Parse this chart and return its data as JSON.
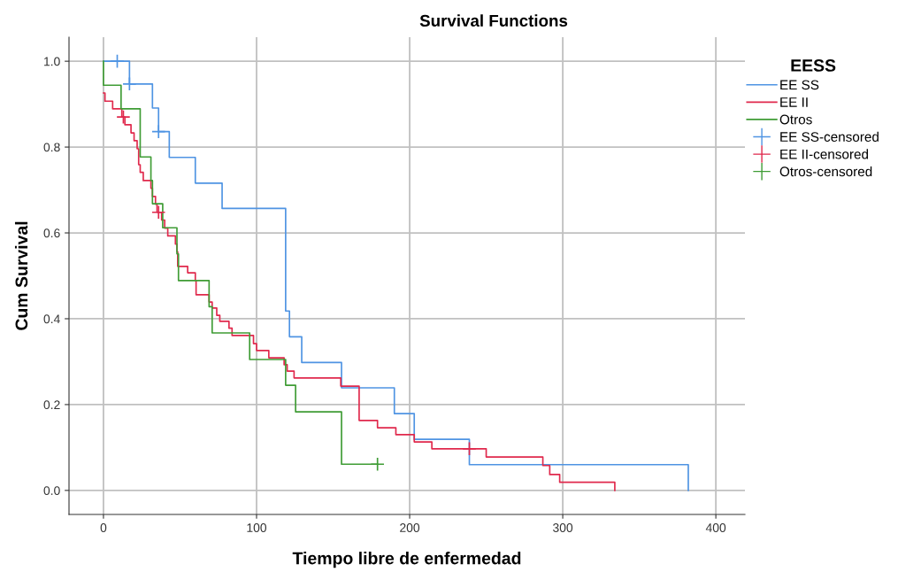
{
  "chart_data": {
    "type": "step",
    "title": "Survival Functions",
    "xlabel": "Tiempo libre de enfermedad",
    "ylabel": "Cum Survival",
    "legend_title": "EESS",
    "legend": "right",
    "grid": true,
    "xlim": [
      -22.5,
      419
    ],
    "ylim": [
      -0.056,
      1.056
    ],
    "xticks": [
      0,
      100,
      200,
      300,
      400
    ],
    "yticks": [
      {
        "value": 0,
        "label": "0.0"
      },
      {
        "value": 0.2,
        "label": "0.2"
      },
      {
        "value": 0.4,
        "label": "0.4"
      },
      {
        "value": 0.6,
        "label": "0.6"
      },
      {
        "value": 0.8,
        "label": "0.8"
      },
      {
        "value": 1,
        "label": "1.0"
      }
    ],
    "series": [
      {
        "name": "EE SS",
        "type": "step",
        "color": "#4f94e3",
        "x": [
          0,
          17,
          32,
          36,
          43,
          60,
          77.5,
          119,
          121.5,
          129.5,
          155.5,
          190,
          203,
          239,
          382
        ],
        "values": [
          1.0,
          0.947,
          0.891,
          0.836,
          0.776,
          0.716,
          0.657,
          0.418,
          0.358,
          0.298,
          0.239,
          0.179,
          0.119,
          0.06,
          0.0
        ]
      },
      {
        "name": "EE II",
        "type": "step",
        "color": "#e0294c",
        "x": [
          0,
          1,
          6,
          12,
          14,
          18,
          20,
          22,
          23,
          24,
          26,
          31,
          32,
          34,
          35,
          38,
          40,
          42,
          47,
          48,
          48.5,
          55,
          60,
          60.5,
          69,
          71,
          74,
          76,
          82,
          84,
          98,
          100,
          108,
          118,
          120,
          124.5,
          155,
          167,
          179,
          191,
          203,
          214.5,
          250,
          287,
          291.5,
          298,
          334
        ],
        "values": [
          0.926,
          0.907,
          0.889,
          0.87,
          0.852,
          0.833,
          0.815,
          0.796,
          0.759,
          0.741,
          0.722,
          0.704,
          0.685,
          0.667,
          0.648,
          0.63,
          0.611,
          0.593,
          0.574,
          0.556,
          0.522,
          0.507,
          0.489,
          0.456,
          0.439,
          0.425,
          0.408,
          0.394,
          0.378,
          0.361,
          0.342,
          0.326,
          0.309,
          0.293,
          0.278,
          0.262,
          0.243,
          0.163,
          0.146,
          0.13,
          0.113,
          0.097,
          0.078,
          0.058,
          0.037,
          0.019,
          0.0
        ]
      },
      {
        "name": "Otros",
        "type": "step",
        "color": "#3f9c35",
        "x": [
          0,
          0,
          11.5,
          24,
          31,
          32,
          38.7,
          48,
          49,
          69,
          71,
          95.5,
          119,
          125.5,
          155.5,
          179
        ],
        "values": [
          1.0,
          0.944,
          0.889,
          0.777,
          0.722,
          0.668,
          0.612,
          0.551,
          0.489,
          0.428,
          0.367,
          0.305,
          0.245,
          0.183,
          0.061,
          0.061
        ]
      },
      {
        "name": "EE SS-censored",
        "type": "scatter",
        "marker": "cross",
        "color": "#4f94e3",
        "x": [
          9,
          17,
          36
        ],
        "values": [
          1.0,
          0.947,
          0.836
        ]
      },
      {
        "name": "EE II-censored",
        "type": "scatter",
        "marker": "cross",
        "color": "#e0294c",
        "x": [
          13,
          36,
          239
        ],
        "values": [
          0.87,
          0.648,
          0.097
        ]
      },
      {
        "name": "Otros-censored",
        "type": "scatter",
        "marker": "cross",
        "color": "#3f9c35",
        "x": [
          179
        ],
        "values": [
          0.061
        ]
      }
    ]
  }
}
